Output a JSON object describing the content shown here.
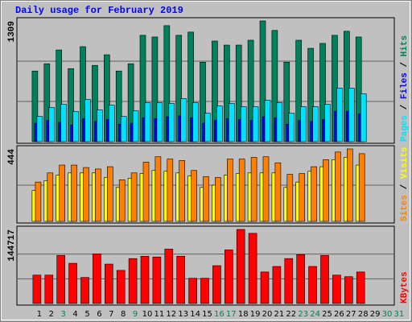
{
  "chart_data": [
    {
      "type": "bar",
      "title": "Daily usage for February 2019",
      "ylim": [
        0,
        1309
      ],
      "yticks": [
        1309
      ],
      "grid": true,
      "legend_separator": " / ",
      "series": [
        {
          "name": "Hits",
          "color": "#00805c",
          "values": [
            766,
            845,
            994,
            792,
            1030,
            827,
            942,
            766,
            845,
            1153,
            1135,
            1258,
            1153,
            1188,
            862,
            1091,
            1047,
            1047,
            1100,
            1309,
            1206,
            862,
            1100,
            1012,
            1065,
            1153,
            1197,
            1135,
            null,
            null,
            null
          ]
        },
        {
          "name": "Files",
          "color": "#0000ff",
          "values": [
            200,
            230,
            210,
            180,
            250,
            220,
            240,
            190,
            200,
            260,
            250,
            270,
            280,
            260,
            200,
            230,
            250,
            240,
            230,
            270,
            260,
            190,
            230,
            220,
            240,
            330,
            330,
            300,
            null,
            null,
            null
          ]
        },
        {
          "name": "Pages",
          "color": "#00e0ff",
          "values": [
            273,
            370,
            405,
            326,
            458,
            343,
            396,
            273,
            334,
            422,
            422,
            414,
            466,
            422,
            308,
            387,
            414,
            378,
            378,
            449,
            422,
            308,
            378,
            378,
            405,
            581,
            581,
            519,
            null,
            null,
            null
          ]
        }
      ]
    },
    {
      "type": "bar",
      "ylim": [
        0,
        444
      ],
      "yticks": [
        444
      ],
      "grid": true,
      "legend_separator": " / ",
      "series": [
        {
          "name": "Visits",
          "color": "#ffff00",
          "values": [
            189,
            250,
            283,
            297,
            297,
            297,
            269,
            208,
            264,
            293,
            312,
            307,
            297,
            278,
            208,
            222,
            283,
            293,
            297,
            297,
            297,
            208,
            241,
            307,
            335,
            378,
            392,
            345,
            null,
            null,
            null
          ]
        },
        {
          "name": "Sites",
          "color": "#ff8000",
          "values": [
            241,
            297,
            345,
            345,
            330,
            321,
            335,
            255,
            297,
            363,
            396,
            382,
            373,
            312,
            274,
            269,
            382,
            382,
            392,
            396,
            359,
            288,
            293,
            335,
            378,
            425,
            444,
            415,
            null,
            null,
            null
          ]
        }
      ]
    },
    {
      "type": "bar",
      "ylim": [
        0,
        144717
      ],
      "yticks": [
        144717
      ],
      "grid": true,
      "categories": [
        "1",
        "2",
        "3",
        "4",
        "5",
        "6",
        "7",
        "8",
        "9",
        "10",
        "11",
        "12",
        "13",
        "14",
        "15",
        "16",
        "17",
        "18",
        "19",
        "20",
        "21",
        "22",
        "23",
        "24",
        "25",
        "26",
        "27",
        "28",
        "29",
        "30",
        "31"
      ],
      "category_colors": [
        "#000000",
        "#000000",
        "#00805c",
        "#000000",
        "#000000",
        "#000000",
        "#000000",
        "#000000",
        "#00805c",
        "#000000",
        "#000000",
        "#000000",
        "#000000",
        "#000000",
        "#000000",
        "#00805c",
        "#00805c",
        "#000000",
        "#000000",
        "#000000",
        "#000000",
        "#000000",
        "#00805c",
        "#00805c",
        "#000000",
        "#000000",
        "#000000",
        "#000000",
        "#000000",
        "#00805c",
        "#00805c"
      ],
      "series": [
        {
          "name": "KBytes",
          "color": "#ff0000",
          "values": [
            55440,
            55440,
            93940,
            78540,
            50820,
            97020,
            77000,
            64680,
            87780,
            92400,
            90860,
            106260,
            92400,
            49280,
            49280,
            73920,
            104720,
            144717,
            137060,
            61600,
            72380,
            87780,
            95480,
            72380,
            93940,
            55440,
            52360,
            61600,
            null,
            null,
            null
          ]
        }
      ]
    }
  ]
}
